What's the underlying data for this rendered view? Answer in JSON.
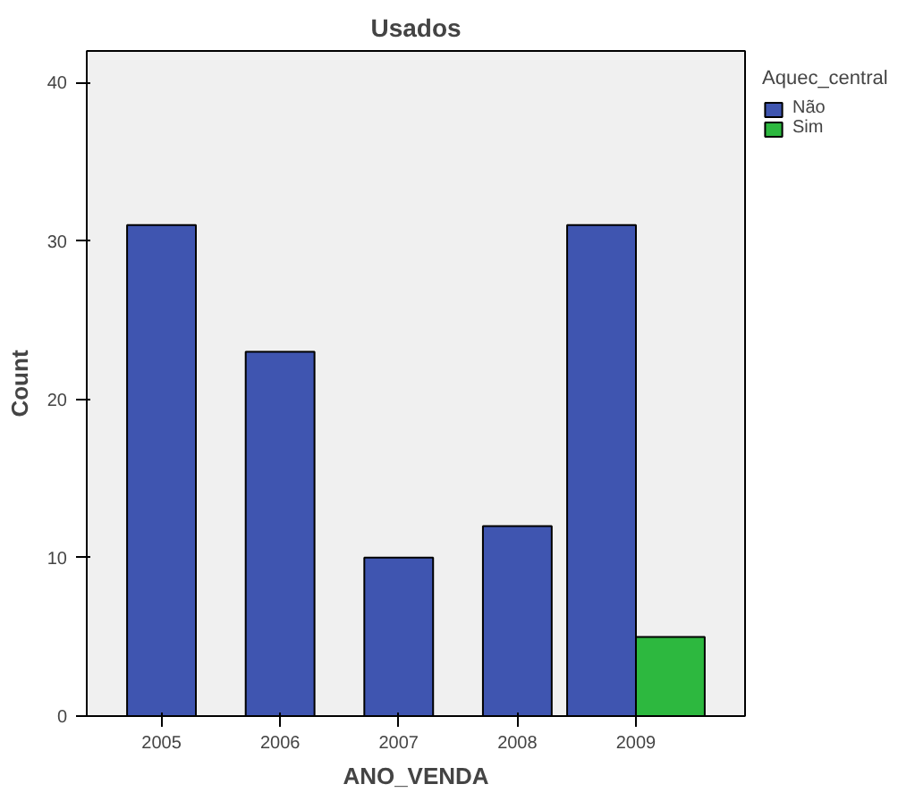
{
  "chart_data": {
    "type": "bar",
    "title": "Usados",
    "xlabel": "ANO_VENDA",
    "ylabel": "Count",
    "legend_title": "Aquec_central",
    "legend": "top right",
    "grid": false,
    "categories": [
      "2005",
      "2006",
      "2007",
      "2008",
      "2009"
    ],
    "series": [
      {
        "name": "Não",
        "color": "#3f55b0",
        "values": [
          31,
          23,
          10,
          12,
          31
        ]
      },
      {
        "name": "Sim",
        "color": "#2db83f",
        "values": [
          null,
          null,
          null,
          null,
          5
        ]
      }
    ],
    "ylim": [
      0,
      42
    ],
    "yticks": [
      0,
      10,
      20,
      30,
      40
    ]
  }
}
